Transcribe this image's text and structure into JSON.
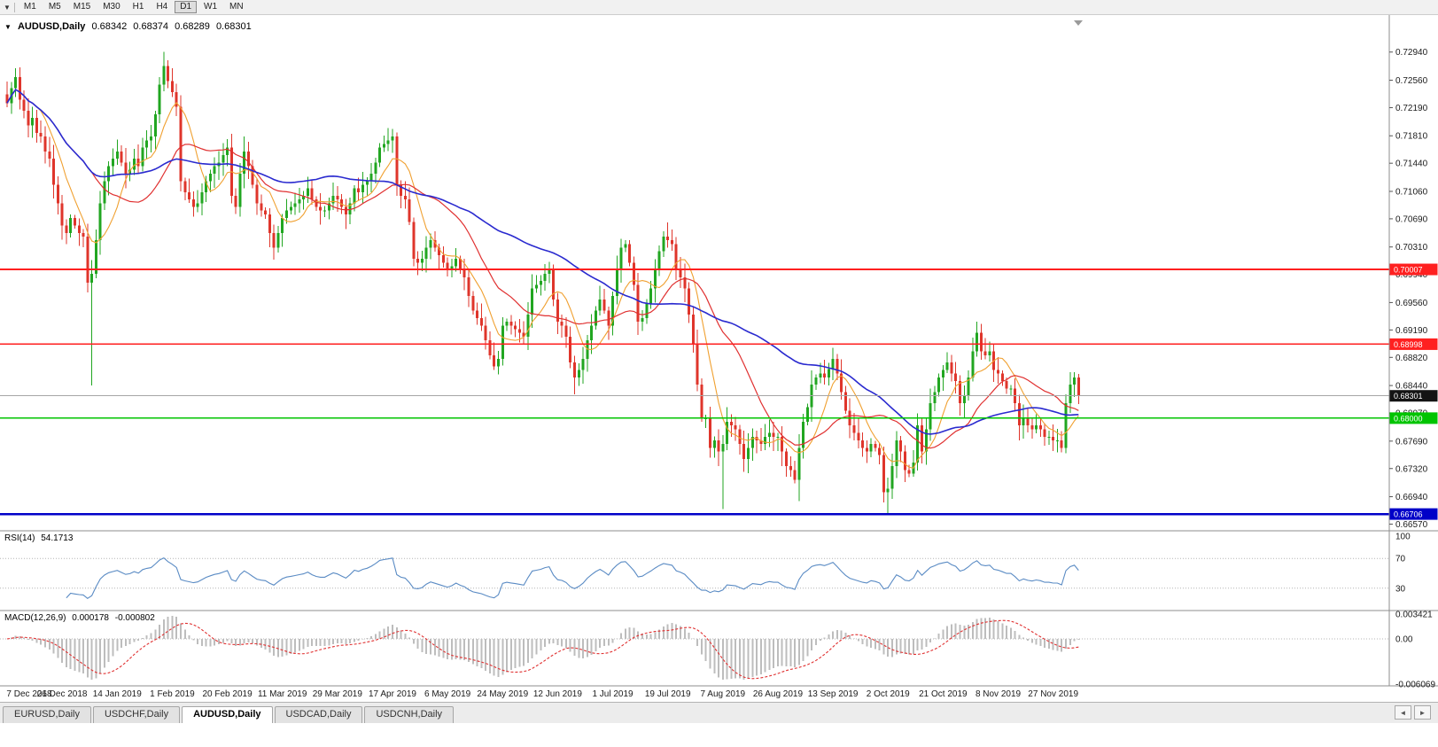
{
  "icons": {
    "toolbar_menu": "▼",
    "collapse": "▼",
    "tab_scroll_left": "◄",
    "tab_scroll_right": "►"
  },
  "toolbar": {
    "timeframes": [
      "M1",
      "M5",
      "M15",
      "M30",
      "H1",
      "H4",
      "D1",
      "W1",
      "MN"
    ],
    "active": "D1"
  },
  "header": {
    "symbol": "AUDUSD,Daily",
    "open": "0.68342",
    "high": "0.68374",
    "low": "0.68289",
    "close": "0.68301"
  },
  "rsi": {
    "name": "RSI(14)",
    "value": "54.1713",
    "axis_labels": [
      "100",
      "70",
      "30"
    ],
    "upper_level": 70,
    "lower_level": 30,
    "line_color": "#5A8BC4"
  },
  "macd": {
    "name": "MACD(12,26,9)",
    "main_value": "0.000178",
    "signal_value": "-0.000802",
    "axis_labels": [
      "0.003421",
      "0.00",
      "-0.006069"
    ],
    "hist_color": "#BDBDBD",
    "signal_color": "#E03030"
  },
  "tabs": {
    "items": [
      "EURUSD,Daily",
      "USDCHF,Daily",
      "AUDUSD,Daily",
      "USDCAD,Daily",
      "USDCNH,Daily"
    ],
    "active": "AUDUSD,Daily"
  },
  "chart_data": {
    "type": "candlestick",
    "symbol": "AUDUSD",
    "timeframe": "Daily",
    "current_quote": {
      "open": 0.68342,
      "high": 0.68374,
      "low": 0.68289,
      "close": 0.68301
    },
    "y_axis_ticks": [
      "0.72940",
      "0.72560",
      "0.72190",
      "0.71810",
      "0.71440",
      "0.71060",
      "0.70690",
      "0.70310",
      "0.69940",
      "0.69560",
      "0.69190",
      "0.68820",
      "0.68440",
      "0.68070",
      "0.67690",
      "0.67320",
      "0.66940",
      "0.66570"
    ],
    "x_labels": [
      "7 Dec 2018",
      "26 Dec 2018",
      "14 Jan 2019",
      "1 Feb 2019",
      "20 Feb 2019",
      "11 Mar 2019",
      "29 Mar 2019",
      "17 Apr 2019",
      "6 May 2019",
      "24 May 2019",
      "12 Jun 2019",
      "1 Jul 2019",
      "19 Jul 2019",
      "7 Aug 2019",
      "26 Aug 2019",
      "13 Sep 2019",
      "2 Oct 2019",
      "21 Oct 2019",
      "8 Nov 2019",
      "27 Nov 2019"
    ],
    "x_label_step_candles": 13,
    "price_axis_top": 0.732,
    "price_axis_bottom": 0.6648,
    "up_color": "#21A621",
    "down_color": "#DF352B",
    "ma_colors": {
      "fast": "#F0A030",
      "medium": "#E03030",
      "slow": "#2A2ACF"
    },
    "closes": [
      0.7225,
      0.7245,
      0.726,
      0.723,
      0.7215,
      0.7195,
      0.7205,
      0.7185,
      0.718,
      0.716,
      0.715,
      0.7115,
      0.709,
      0.706,
      0.705,
      0.707,
      0.706,
      0.705,
      0.7045,
      0.6983,
      0.6995,
      0.704,
      0.709,
      0.712,
      0.714,
      0.715,
      0.716,
      0.7145,
      0.713,
      0.7135,
      0.715,
      0.714,
      0.7165,
      0.7175,
      0.718,
      0.721,
      0.725,
      0.7275,
      0.7255,
      0.724,
      0.722,
      0.712,
      0.7105,
      0.7095,
      0.7085,
      0.709,
      0.7105,
      0.712,
      0.713,
      0.714,
      0.7145,
      0.7155,
      0.7165,
      0.71,
      0.7085,
      0.713,
      0.716,
      0.714,
      0.7115,
      0.709,
      0.708,
      0.7075,
      0.705,
      0.703,
      0.705,
      0.707,
      0.708,
      0.7085,
      0.709,
      0.7095,
      0.71,
      0.711,
      0.7095,
      0.7085,
      0.708,
      0.708,
      0.709,
      0.71,
      0.7095,
      0.7085,
      0.7075,
      0.709,
      0.711,
      0.7105,
      0.7115,
      0.712,
      0.713,
      0.7145,
      0.7165,
      0.717,
      0.7175,
      0.718,
      0.7115,
      0.71,
      0.7095,
      0.7065,
      0.7015,
      0.701,
      0.7015,
      0.703,
      0.704,
      0.703,
      0.702,
      0.701,
      0.7,
      0.7005,
      0.7015,
      0.7,
      0.699,
      0.6965,
      0.6945,
      0.6935,
      0.6925,
      0.6905,
      0.6885,
      0.687,
      0.688,
      0.6925,
      0.693,
      0.6925,
      0.692,
      0.6915,
      0.691,
      0.694,
      0.6975,
      0.698,
      0.6985,
      0.6995,
      0.7,
      0.696,
      0.693,
      0.6925,
      0.691,
      0.6875,
      0.6855,
      0.6865,
      0.688,
      0.6905,
      0.6925,
      0.6945,
      0.696,
      0.6945,
      0.6925,
      0.6965,
      0.7,
      0.703,
      0.7035,
      0.701,
      0.698,
      0.693,
      0.6935,
      0.6955,
      0.6975,
      0.7,
      0.7025,
      0.7045,
      0.704,
      0.7035,
      0.7,
      0.699,
      0.6975,
      0.694,
      0.69,
      0.6845,
      0.68,
      0.68,
      0.676,
      0.677,
      0.6755,
      0.6765,
      0.6795,
      0.679,
      0.6785,
      0.6765,
      0.6745,
      0.676,
      0.6775,
      0.677,
      0.6765,
      0.6775,
      0.678,
      0.6775,
      0.6775,
      0.6755,
      0.6735,
      0.673,
      0.6717,
      0.676,
      0.6795,
      0.6815,
      0.6845,
      0.6855,
      0.686,
      0.6855,
      0.6866,
      0.688,
      0.686,
      0.6835,
      0.681,
      0.679,
      0.678,
      0.677,
      0.676,
      0.6755,
      0.6765,
      0.676,
      0.675,
      0.67,
      0.6705,
      0.6735,
      0.677,
      0.6755,
      0.673,
      0.6725,
      0.674,
      0.679,
      0.6755,
      0.6785,
      0.682,
      0.6835,
      0.6855,
      0.6865,
      0.6875,
      0.686,
      0.685,
      0.682,
      0.683,
      0.6855,
      0.689,
      0.6915,
      0.689,
      0.6885,
      0.689,
      0.6865,
      0.686,
      0.685,
      0.684,
      0.684,
      0.682,
      0.679,
      0.68,
      0.679,
      0.6785,
      0.679,
      0.6785,
      0.6775,
      0.6775,
      0.677,
      0.677,
      0.676,
      0.682,
      0.6845,
      0.6855,
      0.683
    ],
    "wick_high_overrides": {
      "2": 0.7272,
      "37": 0.7294,
      "56": 0.718,
      "91": 0.719,
      "146": 0.704,
      "155": 0.7052,
      "195": 0.6895,
      "229": 0.693,
      "252": 0.6862
    },
    "wick_low_overrides": {
      "14": 0.7035,
      "20": 0.6844,
      "96": 0.7005,
      "115": 0.6865,
      "134": 0.6832,
      "169": 0.6677,
      "187": 0.6688,
      "208": 0.667,
      "249": 0.6754
    },
    "horizontal_levels": [
      {
        "value": 0.70007,
        "label": "0.70007",
        "color": "#FF2020",
        "width": 1.6
      },
      {
        "value": 0.68998,
        "label": "0.68998",
        "color": "#FF2020",
        "width": 1.6
      },
      {
        "value": 0.68,
        "label": "0.68000",
        "color": "#00C400",
        "width": 1.6
      },
      {
        "value": 0.66706,
        "label": "0.66706",
        "color": "#0000C8",
        "width": 2.4
      }
    ],
    "bid_line": {
      "value": 0.68301,
      "label": "0.68301",
      "line_color": "#A6A6A6",
      "box_color": "#141414"
    }
  }
}
